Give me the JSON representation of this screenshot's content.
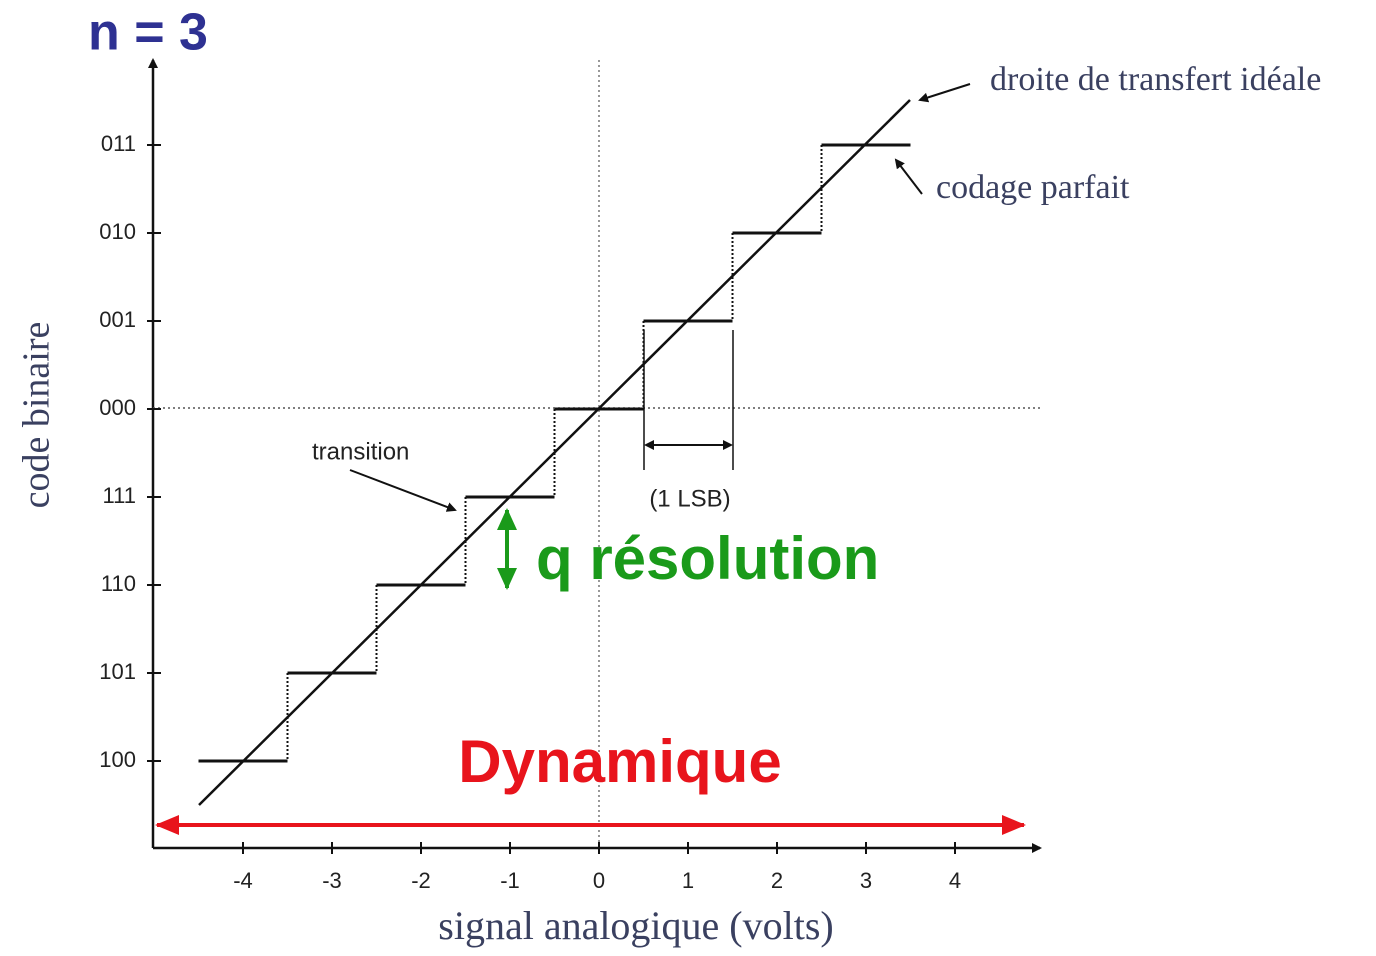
{
  "title": "n = 3",
  "y_axis": {
    "label": "code binaire",
    "ticks": [
      "011",
      "010",
      "001",
      "000",
      "111",
      "110",
      "101",
      "100"
    ]
  },
  "x_axis": {
    "label": "signal analogique (volts)",
    "ticks": [
      "-4",
      "-3",
      "-2",
      "-1",
      "0",
      "1",
      "2",
      "3",
      "4"
    ]
  },
  "annotations": {
    "ideal": "droite de transfert idéale",
    "perfect": "codage parfait",
    "transition": "transition",
    "lsb": "(1 LSB)",
    "resolution": "q résolution",
    "dynamic": "Dynamique"
  }
}
